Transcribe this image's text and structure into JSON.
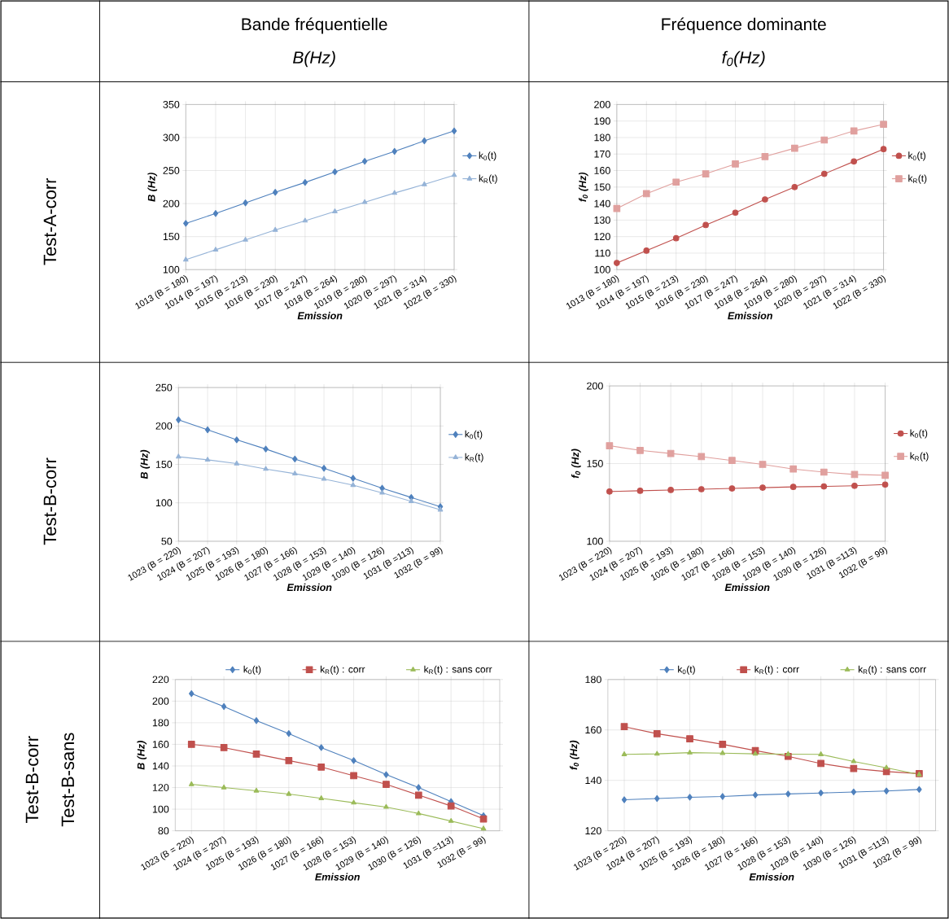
{
  "chart_data": [
    {
      "type": "line",
      "title": "Bande fréquentielle",
      "subtitle": "B(Hz)",
      "annotations": [
        "Test-A-corr"
      ],
      "categories": [
        "1013 (B = 180)",
        "1014 (B = 197)",
        "1015 (B = 213)",
        "1016 (B = 230)",
        "1017 (B = 247)",
        "1018 (B = 264)",
        "1019 (B = 280)",
        "1020 (B = 297)",
        "1021 (B = 314)",
        "1022 (B = 330)"
      ],
      "xlabel": "Emission",
      "ylabel": "B (Hz)",
      "ylim": [
        100,
        350
      ],
      "yticks": [
        100,
        150,
        200,
        250,
        300,
        350
      ],
      "grid": true,
      "legend": "right",
      "series": [
        {
          "name": "k$_{0}$(t)",
          "color": "#4f81bd",
          "marker": "diamond",
          "values": [
            170,
            185,
            201,
            217,
            232,
            248,
            264,
            279,
            295,
            310
          ]
        },
        {
          "name": "k$_{R}$(t)",
          "color": "#95b3d7",
          "marker": "triangle",
          "values": [
            115,
            130,
            145,
            160,
            174,
            188,
            202,
            216,
            229,
            243
          ]
        }
      ]
    },
    {
      "type": "line",
      "title": "Fréquence dominante",
      "subtitle": "f$_{0}$(Hz)",
      "categories": [
        "1013 (B = 180)",
        "1014 (B = 197)",
        "1015 (B = 213)",
        "1016 (B = 230)",
        "1017 (B = 247)",
        "1018 (B = 264)",
        "1019 (B = 280)",
        "1020 (B = 297)",
        "1021 (B = 314)",
        "1022 (B = 330)"
      ],
      "xlabel": "Emission",
      "ylabel": "f$_{0}$ (Hz)",
      "ylim": [
        100,
        200
      ],
      "yticks": [
        100,
        110,
        120,
        130,
        140,
        150,
        160,
        170,
        180,
        190,
        200
      ],
      "grid": true,
      "legend": "right",
      "series": [
        {
          "name": "k$_{0}$(t)",
          "color": "#c0504d",
          "marker": "circle",
          "values": [
            104,
            111.5,
            119,
            127,
            134.5,
            142.5,
            150,
            158,
            165.5,
            173
          ]
        },
        {
          "name": "k$_{R}$(t)",
          "color": "#e0a09e",
          "marker": "square",
          "values": [
            137,
            146,
            153,
            158,
            164,
            168.5,
            173.5,
            178.5,
            184,
            188
          ]
        }
      ]
    },
    {
      "type": "line",
      "annotations": [
        "Test-B-corr"
      ],
      "categories": [
        "1023 (B = 220)",
        "1024 (B = 207)",
        "1025 (B = 193)",
        "1026 (B = 180)",
        "1027 (B = 166)",
        "1028 (B = 153)",
        "1029 (B = 140)",
        "1030 (B = 126)",
        "1031 (B =113)",
        "1032 (B = 99)"
      ],
      "xlabel": "Emission",
      "ylabel": "B (Hz)",
      "ylim": [
        50,
        250
      ],
      "yticks": [
        50,
        100,
        150,
        200,
        250
      ],
      "grid": true,
      "legend": "right",
      "series": [
        {
          "name": "k$_{0}$(t)",
          "color": "#4f81bd",
          "marker": "diamond",
          "values": [
            208,
            195,
            182,
            170,
            157,
            145,
            132,
            119,
            107,
            95
          ]
        },
        {
          "name": "k$_{R}$(t)",
          "color": "#95b3d7",
          "marker": "triangle",
          "values": [
            160,
            156,
            151,
            144,
            138,
            131,
            123,
            113,
            102,
            91
          ]
        }
      ]
    },
    {
      "type": "line",
      "categories": [
        "1023 (B = 220)",
        "1024 (B = 207)",
        "1025 (B = 193)",
        "1026 (B = 180)",
        "1027 (B = 166)",
        "1028 (B = 153)",
        "1029 (B = 140)",
        "1030 (B = 126)",
        "1031 (B =113)",
        "1032 (B = 99)"
      ],
      "xlabel": "Emission",
      "ylabel": "f$_{0}$ (Hz)",
      "ylim": [
        100,
        200
      ],
      "yticks": [
        100,
        150,
        200
      ],
      "grid": true,
      "legend": "right",
      "series": [
        {
          "name": "k$_{0}$(t)",
          "color": "#c0504d",
          "marker": "circle",
          "values": [
            132,
            132.5,
            133,
            133.5,
            134,
            134.5,
            135,
            135.3,
            135.7,
            136.5
          ]
        },
        {
          "name": "k$_{R}$(t)",
          "color": "#e0a09e",
          "marker": "square",
          "values": [
            161.5,
            158.5,
            156.5,
            154.5,
            152,
            149.5,
            146.5,
            144.5,
            143,
            142.5
          ]
        }
      ]
    },
    {
      "type": "line",
      "annotations": [
        "Test-B-corr",
        "Test-B-sans"
      ],
      "categories": [
        "1023 (B = 220)",
        "1024 (B = 207)",
        "1025 (B = 193)",
        "1026 (B = 180)",
        "1027 (B = 166)",
        "1028 (B = 153)",
        "1029 (B = 140)",
        "1030 (B = 126)",
        "1031 (B =113)",
        "1032 (B = 99)"
      ],
      "xlabel": "Emission",
      "ylabel": "B (Hz)",
      "ylim": [
        80,
        220
      ],
      "yticks": [
        80,
        100,
        120,
        140,
        160,
        180,
        200,
        220
      ],
      "grid": true,
      "legend": "top",
      "series": [
        {
          "name": "k$_{0}$(t)",
          "color": "#4f81bd",
          "marker": "diamond",
          "values": [
            207,
            195,
            182,
            170,
            157,
            145,
            132,
            120,
            107,
            94
          ]
        },
        {
          "name": "k$_{R}$(t) : corr",
          "color": "#c0504d",
          "marker": "square",
          "values": [
            160,
            157,
            151,
            145,
            139,
            131,
            123,
            113,
            103,
            91
          ]
        },
        {
          "name": "k$_{R}$(t) : sans corr",
          "color": "#9bbb59",
          "marker": "triangle",
          "values": [
            123,
            120,
            117,
            114,
            110,
            106,
            102,
            96,
            89,
            82
          ]
        }
      ]
    },
    {
      "type": "line",
      "categories": [
        "1023 (B = 220)",
        "1024 (B = 207)",
        "1025 (B = 193)",
        "1026 (B = 180)",
        "1027 (B = 166)",
        "1028 (B = 153)",
        "1029 (B = 140)",
        "1030 (B = 126)",
        "1031 (B =113)",
        "1032 (B = 99)"
      ],
      "xlabel": "Emission",
      "ylabel": "f$_{0}$ (Hz)",
      "ylim": [
        120,
        180
      ],
      "yticks": [
        120,
        140,
        160,
        180
      ],
      "grid": true,
      "legend": "top",
      "series": [
        {
          "name": "k$_{0}$(t)",
          "color": "#4f81bd",
          "marker": "diamond",
          "values": [
            132.3,
            132.8,
            133.3,
            133.6,
            134.2,
            134.6,
            135,
            135.4,
            135.8,
            136.4
          ]
        },
        {
          "name": "k$_{R}$(t) : corr",
          "color": "#c0504d",
          "marker": "square",
          "values": [
            161.3,
            158.5,
            156.5,
            154.3,
            151.8,
            149.5,
            146.7,
            144.7,
            143.5,
            142.7
          ]
        },
        {
          "name": "k$_{R}$(t) : sans corr",
          "color": "#9bbb59",
          "marker": "triangle",
          "values": [
            150.3,
            150.5,
            151,
            150.8,
            150.5,
            150.4,
            150.3,
            147.5,
            145,
            142.3
          ]
        }
      ]
    }
  ]
}
